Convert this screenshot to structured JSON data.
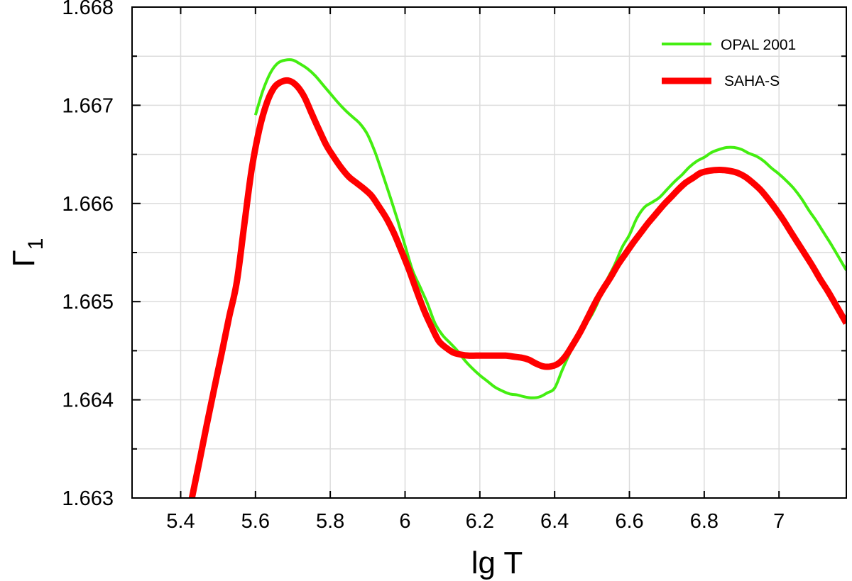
{
  "chart_data": {
    "type": "line",
    "xlabel": "lg T",
    "ylabel_main": "Γ",
    "ylabel_sub": "1",
    "xlim": [
      5.27,
      7.18
    ],
    "ylim": [
      1.663,
      1.668
    ],
    "x_ticks": [
      5.4,
      5.6,
      5.8,
      6,
      6.2,
      6.4,
      6.6,
      6.8,
      7
    ],
    "x_tick_labels": [
      "5.4",
      "5.6",
      "5.8",
      "6",
      "6.2",
      "6.4",
      "6.6",
      "6.8",
      "7"
    ],
    "y_ticks": [
      1.663,
      1.664,
      1.665,
      1.666,
      1.667,
      1.668
    ],
    "y_tick_labels": [
      "1.663",
      "1.664",
      "1.665",
      "1.666",
      "1.667",
      "1.668"
    ],
    "y_minor_ticks": [
      1.6635,
      1.6645,
      1.6655,
      1.6665,
      1.6675
    ],
    "grid": true,
    "legend_position": "top-right",
    "series": [
      {
        "name": "OPAL 2001",
        "color": "#44ee11",
        "line_width": 4,
        "x": [
          5.6,
          5.62,
          5.64,
          5.66,
          5.68,
          5.7,
          5.72,
          5.74,
          5.76,
          5.78,
          5.8,
          5.82,
          5.84,
          5.86,
          5.88,
          5.9,
          5.92,
          5.94,
          5.96,
          5.98,
          6.0,
          6.02,
          6.04,
          6.06,
          6.08,
          6.1,
          6.12,
          6.14,
          6.16,
          6.18,
          6.2,
          6.22,
          6.24,
          6.26,
          6.28,
          6.3,
          6.32,
          6.34,
          6.36,
          6.38,
          6.4,
          6.42,
          6.44,
          6.46,
          6.48,
          6.5,
          6.52,
          6.54,
          6.56,
          6.58,
          6.6,
          6.62,
          6.64,
          6.66,
          6.68,
          6.7,
          6.72,
          6.74,
          6.76,
          6.78,
          6.8,
          6.82,
          6.84,
          6.86,
          6.88,
          6.9,
          6.92,
          6.94,
          6.96,
          6.98,
          7.0,
          7.02,
          7.04,
          7.06,
          7.08,
          7.1,
          7.12,
          7.14,
          7.16,
          7.18
        ],
        "y": [
          1.6669,
          1.66715,
          1.66733,
          1.66743,
          1.66746,
          1.66746,
          1.66742,
          1.66737,
          1.6673,
          1.66721,
          1.66712,
          1.66703,
          1.66695,
          1.66688,
          1.66681,
          1.6667,
          1.66652,
          1.6663,
          1.66607,
          1.66583,
          1.66557,
          1.66532,
          1.66515,
          1.66498,
          1.66478,
          1.66466,
          1.66458,
          1.6645,
          1.6644,
          1.66432,
          1.66425,
          1.66419,
          1.66413,
          1.66409,
          1.66406,
          1.66405,
          1.66403,
          1.66402,
          1.66403,
          1.66407,
          1.66412,
          1.6643,
          1.66447,
          1.66462,
          1.66475,
          1.66487,
          1.66503,
          1.66522,
          1.66537,
          1.66555,
          1.66568,
          1.66585,
          1.66596,
          1.66601,
          1.66606,
          1.66614,
          1.66622,
          1.66629,
          1.66637,
          1.66643,
          1.66647,
          1.66652,
          1.66655,
          1.66657,
          1.66657,
          1.66655,
          1.66651,
          1.66648,
          1.66643,
          1.66636,
          1.6663,
          1.66623,
          1.66615,
          1.66605,
          1.66593,
          1.66582,
          1.6657,
          1.66558,
          1.66545,
          1.66532
        ]
      },
      {
        "name": "SAHA-S",
        "color": "#ff0000",
        "line_width": 9,
        "x": [
          5.43,
          5.45,
          5.47,
          5.49,
          5.51,
          5.53,
          5.55,
          5.57,
          5.59,
          5.61,
          5.63,
          5.65,
          5.67,
          5.69,
          5.71,
          5.73,
          5.75,
          5.77,
          5.79,
          5.81,
          5.83,
          5.85,
          5.87,
          5.89,
          5.91,
          5.93,
          5.95,
          5.97,
          5.99,
          6.01,
          6.03,
          6.05,
          6.07,
          6.09,
          6.11,
          6.13,
          6.15,
          6.17,
          6.19,
          6.21,
          6.23,
          6.25,
          6.27,
          6.29,
          6.31,
          6.33,
          6.35,
          6.37,
          6.39,
          6.41,
          6.43,
          6.45,
          6.47,
          6.49,
          6.51,
          6.53,
          6.55,
          6.57,
          6.59,
          6.61,
          6.63,
          6.65,
          6.67,
          6.69,
          6.71,
          6.73,
          6.75,
          6.77,
          6.79,
          6.81,
          6.83,
          6.85,
          6.87,
          6.89,
          6.91,
          6.93,
          6.95,
          6.97,
          6.99,
          7.01,
          7.03,
          7.05,
          7.07,
          7.09,
          7.11,
          7.13,
          7.15,
          7.18
        ],
        "y": [
          1.663,
          1.66337,
          1.66375,
          1.66412,
          1.66448,
          1.66485,
          1.6652,
          1.66578,
          1.66635,
          1.66675,
          1.66702,
          1.66718,
          1.66724,
          1.66725,
          1.6672,
          1.66709,
          1.66692,
          1.66675,
          1.66659,
          1.66647,
          1.66636,
          1.66627,
          1.66621,
          1.66615,
          1.66608,
          1.66597,
          1.66585,
          1.6657,
          1.66552,
          1.66533,
          1.66512,
          1.66492,
          1.66475,
          1.6646,
          1.66453,
          1.66448,
          1.66446,
          1.66445,
          1.66445,
          1.66445,
          1.66445,
          1.66445,
          1.66445,
          1.66444,
          1.66443,
          1.66441,
          1.66437,
          1.66434,
          1.66434,
          1.66437,
          1.66445,
          1.66457,
          1.6647,
          1.66485,
          1.665,
          1.66513,
          1.66525,
          1.66538,
          1.66549,
          1.6656,
          1.6657,
          1.6658,
          1.66589,
          1.66598,
          1.66606,
          1.66614,
          1.66621,
          1.66626,
          1.66631,
          1.66633,
          1.66634,
          1.66634,
          1.66633,
          1.66631,
          1.66627,
          1.66621,
          1.66614,
          1.66605,
          1.66595,
          1.66584,
          1.66572,
          1.6656,
          1.66548,
          1.66536,
          1.66523,
          1.66511,
          1.66498,
          1.66478
        ]
      }
    ]
  }
}
